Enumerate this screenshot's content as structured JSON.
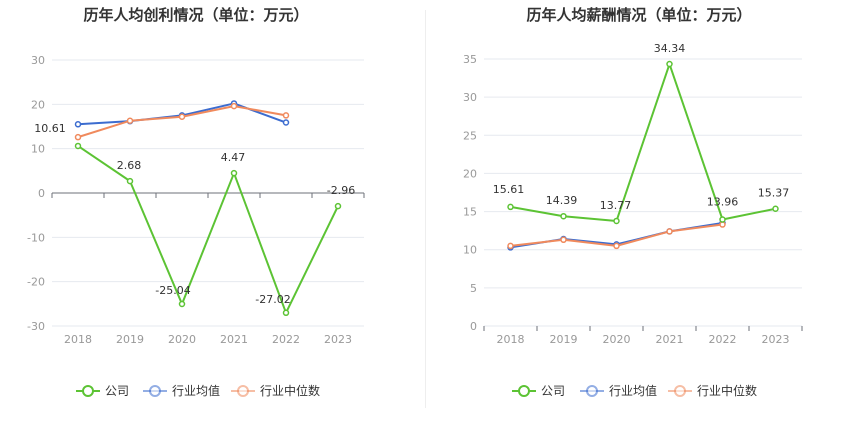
{
  "chart_data": [
    {
      "type": "line",
      "title": "历年人均创利情况（单位：万元）",
      "categories": [
        "2018",
        "2019",
        "2020",
        "2021",
        "2022",
        "2023"
      ],
      "ylim": [
        -30,
        30
      ],
      "yticks": [
        30,
        20,
        10,
        0,
        -10,
        -20,
        -30
      ],
      "grid": true,
      "legend_position": "bottom",
      "series": [
        {
          "name": "公司",
          "color": "#5cc334",
          "values": [
            10.61,
            2.68,
            -25.04,
            4.47,
            -27.02,
            -2.96
          ],
          "labels": [
            "10.61",
            "2.68",
            "-25.04",
            "4.47",
            "-27.02",
            "-2.96"
          ]
        },
        {
          "name": "行业均值",
          "color": "#3c6ccf",
          "values": [
            15.5,
            16.2,
            17.5,
            20.2,
            15.9,
            null
          ],
          "labels": []
        },
        {
          "name": "行业中位数",
          "color": "#f08a5d",
          "values": [
            12.6,
            16.3,
            17.2,
            19.6,
            17.5,
            null
          ],
          "labels": []
        }
      ]
    },
    {
      "type": "line",
      "title": "历年人均薪酬情况（单位：万元）",
      "categories": [
        "2018",
        "2019",
        "2020",
        "2021",
        "2022",
        "2023"
      ],
      "ylim": [
        0,
        35
      ],
      "yticks": [
        35,
        30,
        25,
        20,
        15,
        10,
        5,
        0
      ],
      "grid": true,
      "legend_position": "bottom",
      "series": [
        {
          "name": "公司",
          "color": "#5cc334",
          "values": [
            15.61,
            14.39,
            13.77,
            34.34,
            13.96,
            15.37
          ],
          "labels": [
            "15.61",
            "14.39",
            "13.77",
            "34.34",
            "13.96",
            "15.37"
          ]
        },
        {
          "name": "行业均值",
          "color": "#3c6ccf",
          "values": [
            10.3,
            11.4,
            10.7,
            12.4,
            13.5,
            null
          ],
          "labels": []
        },
        {
          "name": "行业中位数",
          "color": "#f08a5d",
          "values": [
            10.5,
            11.3,
            10.5,
            12.4,
            13.3,
            null
          ],
          "labels": []
        }
      ]
    }
  ]
}
